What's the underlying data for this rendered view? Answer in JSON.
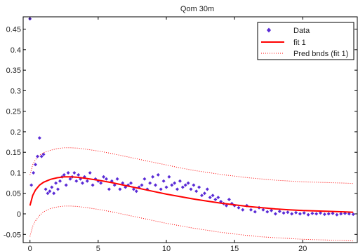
{
  "chart_data": {
    "type": "scatter",
    "title": "Qom 30m",
    "xlim": [
      -0.5,
      24
    ],
    "ylim": [
      -0.07,
      0.48
    ],
    "x_ticks": [
      0,
      5,
      10,
      15,
      20
    ],
    "y_ticks": [
      -0.05,
      0,
      0.05,
      0.1,
      0.15,
      0.2,
      0.25,
      0.3,
      0.35,
      0.4,
      0.45
    ],
    "x_tick_labels": [
      "0",
      "5",
      "10",
      "15",
      "20"
    ],
    "y_tick_labels": [
      "-0.05",
      "0",
      "0.05",
      "0.1",
      "0.15",
      "0.2",
      "0.25",
      "0.3",
      "0.35",
      "0.4",
      "0.45"
    ],
    "grid": false,
    "legend": {
      "position": "top-right",
      "entries": [
        "Data",
        "fit 1",
        "Pred bnds (fit 1)"
      ]
    },
    "series": [
      {
        "name": "Data",
        "style": "points",
        "color": "#5a2bd6",
        "x": [
          0.0,
          0.1,
          0.25,
          0.4,
          0.55,
          0.7,
          0.85,
          1.0,
          1.15,
          1.3,
          1.45,
          1.6,
          1.75,
          1.9,
          2.05,
          2.2,
          2.35,
          2.5,
          2.65,
          2.8,
          2.95,
          3.1,
          3.25,
          3.4,
          3.55,
          3.7,
          3.85,
          4.0,
          4.2,
          4.4,
          4.6,
          4.8,
          5.0,
          5.2,
          5.4,
          5.6,
          5.8,
          6.0,
          6.2,
          6.4,
          6.6,
          6.8,
          7.0,
          7.2,
          7.4,
          7.6,
          7.8,
          8.0,
          8.2,
          8.4,
          8.6,
          8.8,
          9.0,
          9.2,
          9.4,
          9.6,
          9.8,
          10.0,
          10.2,
          10.4,
          10.6,
          10.8,
          11.0,
          11.2,
          11.4,
          11.6,
          11.8,
          12.0,
          12.2,
          12.4,
          12.6,
          12.8,
          13.0,
          13.2,
          13.4,
          13.6,
          13.8,
          14.0,
          14.2,
          14.4,
          14.6,
          14.8,
          15.0,
          15.3,
          15.6,
          15.9,
          16.2,
          16.5,
          16.8,
          17.1,
          17.4,
          17.7,
          18.0,
          18.3,
          18.6,
          18.9,
          19.2,
          19.5,
          19.8,
          20.1,
          20.4,
          20.7,
          21.0,
          21.3,
          21.6,
          21.9,
          22.2,
          22.5,
          22.8,
          23.1,
          23.4,
          23.7
        ],
        "y": [
          0.475,
          0.07,
          0.1,
          0.12,
          0.14,
          0.185,
          0.14,
          0.145,
          0.06,
          0.05,
          0.055,
          0.065,
          0.05,
          0.075,
          0.06,
          0.08,
          0.09,
          0.095,
          0.07,
          0.1,
          0.085,
          0.09,
          0.1,
          0.08,
          0.095,
          0.085,
          0.075,
          0.09,
          0.08,
          0.1,
          0.07,
          0.085,
          0.08,
          0.075,
          0.09,
          0.085,
          0.06,
          0.08,
          0.07,
          0.085,
          0.06,
          0.075,
          0.065,
          0.07,
          0.075,
          0.06,
          0.055,
          0.065,
          0.07,
          0.085,
          0.06,
          0.075,
          0.09,
          0.07,
          0.095,
          0.06,
          0.08,
          0.065,
          0.09,
          0.07,
          0.075,
          0.06,
          0.08,
          0.065,
          0.07,
          0.075,
          0.06,
          0.07,
          0.055,
          0.065,
          0.045,
          0.05,
          0.06,
          0.04,
          0.045,
          0.035,
          0.04,
          0.03,
          0.025,
          0.02,
          0.035,
          0.025,
          0.02,
          0.015,
          0.01,
          0.02,
          0.01,
          0.005,
          0.015,
          0.01,
          0.005,
          0.008,
          0.0,
          0.006,
          0.002,
          0.004,
          0.0,
          0.003,
          0.0,
          0.002,
          -0.002,
          0.001,
          0.0,
          0.002,
          -0.001,
          0.0,
          0.001,
          -0.002,
          0.0,
          0.001,
          0.0,
          -0.001
        ]
      },
      {
        "name": "fit 1",
        "style": "line",
        "color": "#ff0000",
        "x": [
          0.0,
          0.2,
          0.4,
          0.7,
          1.0,
          1.5,
          2.0,
          2.5,
          3.0,
          3.5,
          4.0,
          5.0,
          6.0,
          7.0,
          8.0,
          9.0,
          10.0,
          11.0,
          12.0,
          13.0,
          14.0,
          15.0,
          16.0,
          17.0,
          18.0,
          19.0,
          20.0,
          21.0,
          22.0,
          23.0,
          23.7
        ],
        "y": [
          0.02,
          0.045,
          0.058,
          0.07,
          0.077,
          0.084,
          0.088,
          0.09,
          0.09,
          0.089,
          0.087,
          0.082,
          0.076,
          0.069,
          0.062,
          0.055,
          0.048,
          0.042,
          0.036,
          0.031,
          0.026,
          0.022,
          0.018,
          0.015,
          0.012,
          0.01,
          0.008,
          0.007,
          0.006,
          0.005,
          0.004
        ]
      },
      {
        "name": "Pred bnds (fit 1)",
        "style": "dotted",
        "color": "#ff0000",
        "x": [
          0.0,
          0.2,
          0.4,
          0.7,
          1.0,
          1.5,
          2.0,
          2.5,
          3.0,
          3.5,
          4.0,
          5.0,
          6.0,
          7.0,
          8.0,
          9.0,
          10.0,
          11.0,
          12.0,
          13.0,
          14.0,
          15.0,
          16.0,
          17.0,
          18.0,
          19.0,
          20.0,
          21.0,
          22.0,
          23.0,
          23.7
        ],
        "y_upper": [
          0.095,
          0.12,
          0.132,
          0.143,
          0.149,
          0.155,
          0.159,
          0.161,
          0.161,
          0.16,
          0.158,
          0.153,
          0.147,
          0.14,
          0.133,
          0.126,
          0.119,
          0.112,
          0.106,
          0.101,
          0.096,
          0.092,
          0.088,
          0.085,
          0.082,
          0.08,
          0.078,
          0.077,
          0.076,
          0.075,
          0.074
        ],
        "y_lower": [
          -0.055,
          -0.03,
          -0.017,
          -0.004,
          0.005,
          0.013,
          0.017,
          0.019,
          0.019,
          0.018,
          0.016,
          0.011,
          0.005,
          -0.002,
          -0.009,
          -0.016,
          -0.023,
          -0.029,
          -0.035,
          -0.04,
          -0.045,
          -0.049,
          -0.053,
          -0.056,
          -0.058,
          -0.06,
          -0.062,
          -0.063,
          -0.064,
          -0.065,
          -0.066
        ]
      }
    ]
  }
}
